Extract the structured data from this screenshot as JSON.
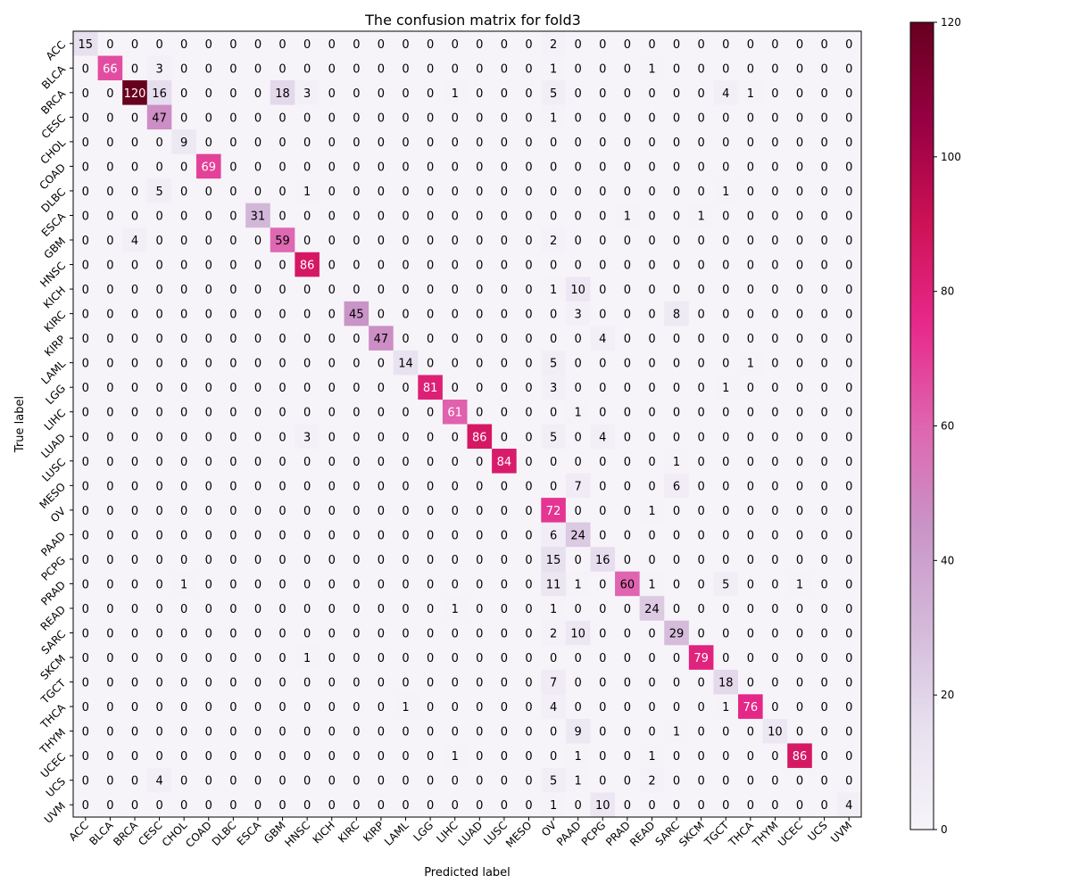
{
  "chart_data": {
    "type": "heatmap",
    "title": "The confusion matrix for fold3",
    "xlabel": "Predicted label",
    "ylabel": "True label",
    "labels": [
      "ACC",
      "BLCA",
      "BRCA",
      "CESC",
      "CHOL",
      "COAD",
      "DLBC",
      "ESCA",
      "GBM",
      "HNSC",
      "KICH",
      "KIRC",
      "KIRP",
      "LAML",
      "LGG",
      "LIHC",
      "LUAD",
      "LUSC",
      "MESO",
      "OV",
      "PAAD",
      "PCPG",
      "PRAD",
      "READ",
      "SARC",
      "SKCM",
      "TGCT",
      "THCA",
      "THYM",
      "UCEC",
      "UCS",
      "UVM"
    ],
    "matrix": [
      [
        15,
        0,
        0,
        0,
        0,
        0,
        0,
        0,
        0,
        0,
        0,
        0,
        0,
        0,
        0,
        0,
        0,
        0,
        0,
        2,
        0,
        0,
        0,
        0,
        0,
        0,
        0,
        0,
        0,
        0,
        0,
        0
      ],
      [
        0,
        66,
        0,
        3,
        0,
        0,
        0,
        0,
        0,
        0,
        0,
        0,
        0,
        0,
        0,
        0,
        0,
        0,
        0,
        1,
        0,
        0,
        0,
        1,
        0,
        0,
        0,
        0,
        0,
        0,
        0,
        0
      ],
      [
        0,
        0,
        120,
        16,
        0,
        0,
        0,
        0,
        18,
        3,
        0,
        0,
        0,
        0,
        0,
        1,
        0,
        0,
        0,
        5,
        0,
        0,
        0,
        0,
        0,
        0,
        4,
        1,
        0,
        0,
        0,
        0
      ],
      [
        0,
        0,
        0,
        47,
        0,
        0,
        0,
        0,
        0,
        0,
        0,
        0,
        0,
        0,
        0,
        0,
        0,
        0,
        0,
        1,
        0,
        0,
        0,
        0,
        0,
        0,
        0,
        0,
        0,
        0,
        0,
        0
      ],
      [
        0,
        0,
        0,
        0,
        9,
        0,
        0,
        0,
        0,
        0,
        0,
        0,
        0,
        0,
        0,
        0,
        0,
        0,
        0,
        0,
        0,
        0,
        0,
        0,
        0,
        0,
        0,
        0,
        0,
        0,
        0,
        0
      ],
      [
        0,
        0,
        0,
        0,
        0,
        69,
        0,
        0,
        0,
        0,
        0,
        0,
        0,
        0,
        0,
        0,
        0,
        0,
        0,
        0,
        0,
        0,
        0,
        0,
        0,
        0,
        0,
        0,
        0,
        0,
        0,
        0
      ],
      [
        0,
        0,
        0,
        5,
        0,
        0,
        0,
        0,
        0,
        1,
        0,
        0,
        0,
        0,
        0,
        0,
        0,
        0,
        0,
        0,
        0,
        0,
        0,
        0,
        0,
        0,
        1,
        0,
        0,
        0,
        0,
        0
      ],
      [
        0,
        0,
        0,
        0,
        0,
        0,
        0,
        31,
        0,
        0,
        0,
        0,
        0,
        0,
        0,
        0,
        0,
        0,
        0,
        0,
        0,
        0,
        1,
        0,
        0,
        1,
        0,
        0,
        0,
        0,
        0,
        0
      ],
      [
        0,
        0,
        4,
        0,
        0,
        0,
        0,
        0,
        59,
        0,
        0,
        0,
        0,
        0,
        0,
        0,
        0,
        0,
        0,
        2,
        0,
        0,
        0,
        0,
        0,
        0,
        0,
        0,
        0,
        0,
        0,
        0
      ],
      [
        0,
        0,
        0,
        0,
        0,
        0,
        0,
        0,
        0,
        86,
        0,
        0,
        0,
        0,
        0,
        0,
        0,
        0,
        0,
        0,
        0,
        0,
        0,
        0,
        0,
        0,
        0,
        0,
        0,
        0,
        0,
        0
      ],
      [
        0,
        0,
        0,
        0,
        0,
        0,
        0,
        0,
        0,
        0,
        0,
        0,
        0,
        0,
        0,
        0,
        0,
        0,
        0,
        1,
        10,
        0,
        0,
        0,
        0,
        0,
        0,
        0,
        0,
        0,
        0,
        0
      ],
      [
        0,
        0,
        0,
        0,
        0,
        0,
        0,
        0,
        0,
        0,
        0,
        45,
        0,
        0,
        0,
        0,
        0,
        0,
        0,
        0,
        3,
        0,
        0,
        0,
        8,
        0,
        0,
        0,
        0,
        0,
        0,
        0
      ],
      [
        0,
        0,
        0,
        0,
        0,
        0,
        0,
        0,
        0,
        0,
        0,
        0,
        47,
        0,
        0,
        0,
        0,
        0,
        0,
        0,
        0,
        4,
        0,
        0,
        0,
        0,
        0,
        0,
        0,
        0,
        0,
        0
      ],
      [
        0,
        0,
        0,
        0,
        0,
        0,
        0,
        0,
        0,
        0,
        0,
        0,
        0,
        14,
        0,
        0,
        0,
        0,
        0,
        5,
        0,
        0,
        0,
        0,
        0,
        0,
        0,
        1,
        0,
        0,
        0,
        0
      ],
      [
        0,
        0,
        0,
        0,
        0,
        0,
        0,
        0,
        0,
        0,
        0,
        0,
        0,
        0,
        81,
        0,
        0,
        0,
        0,
        3,
        0,
        0,
        0,
        0,
        0,
        0,
        1,
        0,
        0,
        0,
        0,
        0
      ],
      [
        0,
        0,
        0,
        0,
        0,
        0,
        0,
        0,
        0,
        0,
        0,
        0,
        0,
        0,
        0,
        61,
        0,
        0,
        0,
        0,
        1,
        0,
        0,
        0,
        0,
        0,
        0,
        0,
        0,
        0,
        0,
        0
      ],
      [
        0,
        0,
        0,
        0,
        0,
        0,
        0,
        0,
        0,
        3,
        0,
        0,
        0,
        0,
        0,
        0,
        86,
        0,
        0,
        5,
        0,
        4,
        0,
        0,
        0,
        0,
        0,
        0,
        0,
        0,
        0,
        0
      ],
      [
        0,
        0,
        0,
        0,
        0,
        0,
        0,
        0,
        0,
        0,
        0,
        0,
        0,
        0,
        0,
        0,
        0,
        84,
        0,
        0,
        0,
        0,
        0,
        0,
        1,
        0,
        0,
        0,
        0,
        0,
        0,
        0
      ],
      [
        0,
        0,
        0,
        0,
        0,
        0,
        0,
        0,
        0,
        0,
        0,
        0,
        0,
        0,
        0,
        0,
        0,
        0,
        0,
        0,
        7,
        0,
        0,
        0,
        6,
        0,
        0,
        0,
        0,
        0,
        0,
        0
      ],
      [
        0,
        0,
        0,
        0,
        0,
        0,
        0,
        0,
        0,
        0,
        0,
        0,
        0,
        0,
        0,
        0,
        0,
        0,
        0,
        72,
        0,
        0,
        0,
        1,
        0,
        0,
        0,
        0,
        0,
        0,
        0,
        0
      ],
      [
        0,
        0,
        0,
        0,
        0,
        0,
        0,
        0,
        0,
        0,
        0,
        0,
        0,
        0,
        0,
        0,
        0,
        0,
        0,
        6,
        24,
        0,
        0,
        0,
        0,
        0,
        0,
        0,
        0,
        0,
        0,
        0
      ],
      [
        0,
        0,
        0,
        0,
        0,
        0,
        0,
        0,
        0,
        0,
        0,
        0,
        0,
        0,
        0,
        0,
        0,
        0,
        0,
        15,
        0,
        16,
        0,
        0,
        0,
        0,
        0,
        0,
        0,
        0,
        0,
        0
      ],
      [
        0,
        0,
        0,
        0,
        1,
        0,
        0,
        0,
        0,
        0,
        0,
        0,
        0,
        0,
        0,
        0,
        0,
        0,
        0,
        11,
        1,
        0,
        60,
        1,
        0,
        0,
        5,
        0,
        0,
        1,
        0,
        0
      ],
      [
        0,
        0,
        0,
        0,
        0,
        0,
        0,
        0,
        0,
        0,
        0,
        0,
        0,
        0,
        0,
        1,
        0,
        0,
        0,
        1,
        0,
        0,
        0,
        24,
        0,
        0,
        0,
        0,
        0,
        0,
        0,
        0
      ],
      [
        0,
        0,
        0,
        0,
        0,
        0,
        0,
        0,
        0,
        0,
        0,
        0,
        0,
        0,
        0,
        0,
        0,
        0,
        0,
        2,
        10,
        0,
        0,
        0,
        29,
        0,
        0,
        0,
        0,
        0,
        0,
        0
      ],
      [
        0,
        0,
        0,
        0,
        0,
        0,
        0,
        0,
        0,
        1,
        0,
        0,
        0,
        0,
        0,
        0,
        0,
        0,
        0,
        0,
        0,
        0,
        0,
        0,
        0,
        79,
        0,
        0,
        0,
        0,
        0,
        0
      ],
      [
        0,
        0,
        0,
        0,
        0,
        0,
        0,
        0,
        0,
        0,
        0,
        0,
        0,
        0,
        0,
        0,
        0,
        0,
        0,
        7,
        0,
        0,
        0,
        0,
        0,
        0,
        18,
        0,
        0,
        0,
        0,
        0
      ],
      [
        0,
        0,
        0,
        0,
        0,
        0,
        0,
        0,
        0,
        0,
        0,
        0,
        0,
        1,
        0,
        0,
        0,
        0,
        0,
        4,
        0,
        0,
        0,
        0,
        0,
        0,
        1,
        76,
        0,
        0,
        0,
        0
      ],
      [
        0,
        0,
        0,
        0,
        0,
        0,
        0,
        0,
        0,
        0,
        0,
        0,
        0,
        0,
        0,
        0,
        0,
        0,
        0,
        0,
        9,
        0,
        0,
        0,
        1,
        0,
        0,
        0,
        10,
        0,
        0,
        0
      ],
      [
        0,
        0,
        0,
        0,
        0,
        0,
        0,
        0,
        0,
        0,
        0,
        0,
        0,
        0,
        0,
        1,
        0,
        0,
        0,
        0,
        1,
        0,
        0,
        1,
        0,
        0,
        0,
        0,
        0,
        86,
        0,
        0
      ],
      [
        0,
        0,
        0,
        4,
        0,
        0,
        0,
        0,
        0,
        0,
        0,
        0,
        0,
        0,
        0,
        0,
        0,
        0,
        0,
        5,
        1,
        0,
        0,
        2,
        0,
        0,
        0,
        0,
        0,
        0,
        0,
        0
      ],
      [
        0,
        0,
        0,
        0,
        0,
        0,
        0,
        0,
        0,
        0,
        0,
        0,
        0,
        0,
        0,
        0,
        0,
        0,
        0,
        1,
        0,
        10,
        0,
        0,
        0,
        0,
        0,
        0,
        0,
        0,
        0,
        4
      ]
    ],
    "vmin": 0,
    "vmax": 120,
    "colorbar_ticks": [
      0,
      20,
      40,
      60,
      80,
      100,
      120
    ],
    "colormap": "PuRd",
    "colormap_stops": [
      "#f7f4f9",
      "#e7e1ef",
      "#d4b9da",
      "#c994c7",
      "#df65b0",
      "#e7298a",
      "#ce1256",
      "#980043",
      "#67001f"
    ],
    "text_color_dark": "#000000",
    "text_color_light": "#ffffff",
    "grid": false
  }
}
